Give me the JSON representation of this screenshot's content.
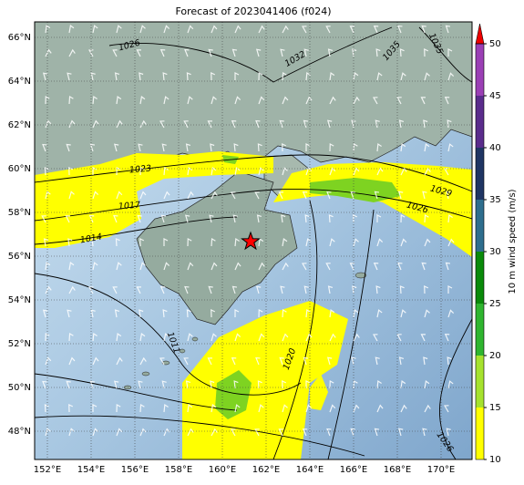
{
  "title": "Forecast of 2023041406 (f024)",
  "lon_labels": [
    "152°E",
    "154°E",
    "156°E",
    "158°E",
    "160°E",
    "162°E",
    "164°E",
    "166°E",
    "168°E",
    "170°E"
  ],
  "lat_labels": [
    "66°N",
    "64°N",
    "62°N",
    "60°N",
    "58°N",
    "56°N",
    "54°N",
    "52°N",
    "50°N",
    "48°N"
  ],
  "contour_labels": [
    1026,
    1032,
    1035,
    1035,
    1023,
    1017,
    1014,
    1029,
    1026,
    1011,
    1020,
    1026
  ],
  "colorbar": {
    "label": "10 m wind speed (m/s)",
    "ticks": [
      10,
      15,
      20,
      25,
      30,
      35,
      40,
      45,
      50
    ],
    "colors": [
      "#ffff00",
      "#a6e22e",
      "#2fb52f",
      "#0a8a0a",
      "#2e6e8e",
      "#1f3563",
      "#5a2c8c",
      "#9b3fb5"
    ],
    "extend_color": "#ee0000"
  }
}
